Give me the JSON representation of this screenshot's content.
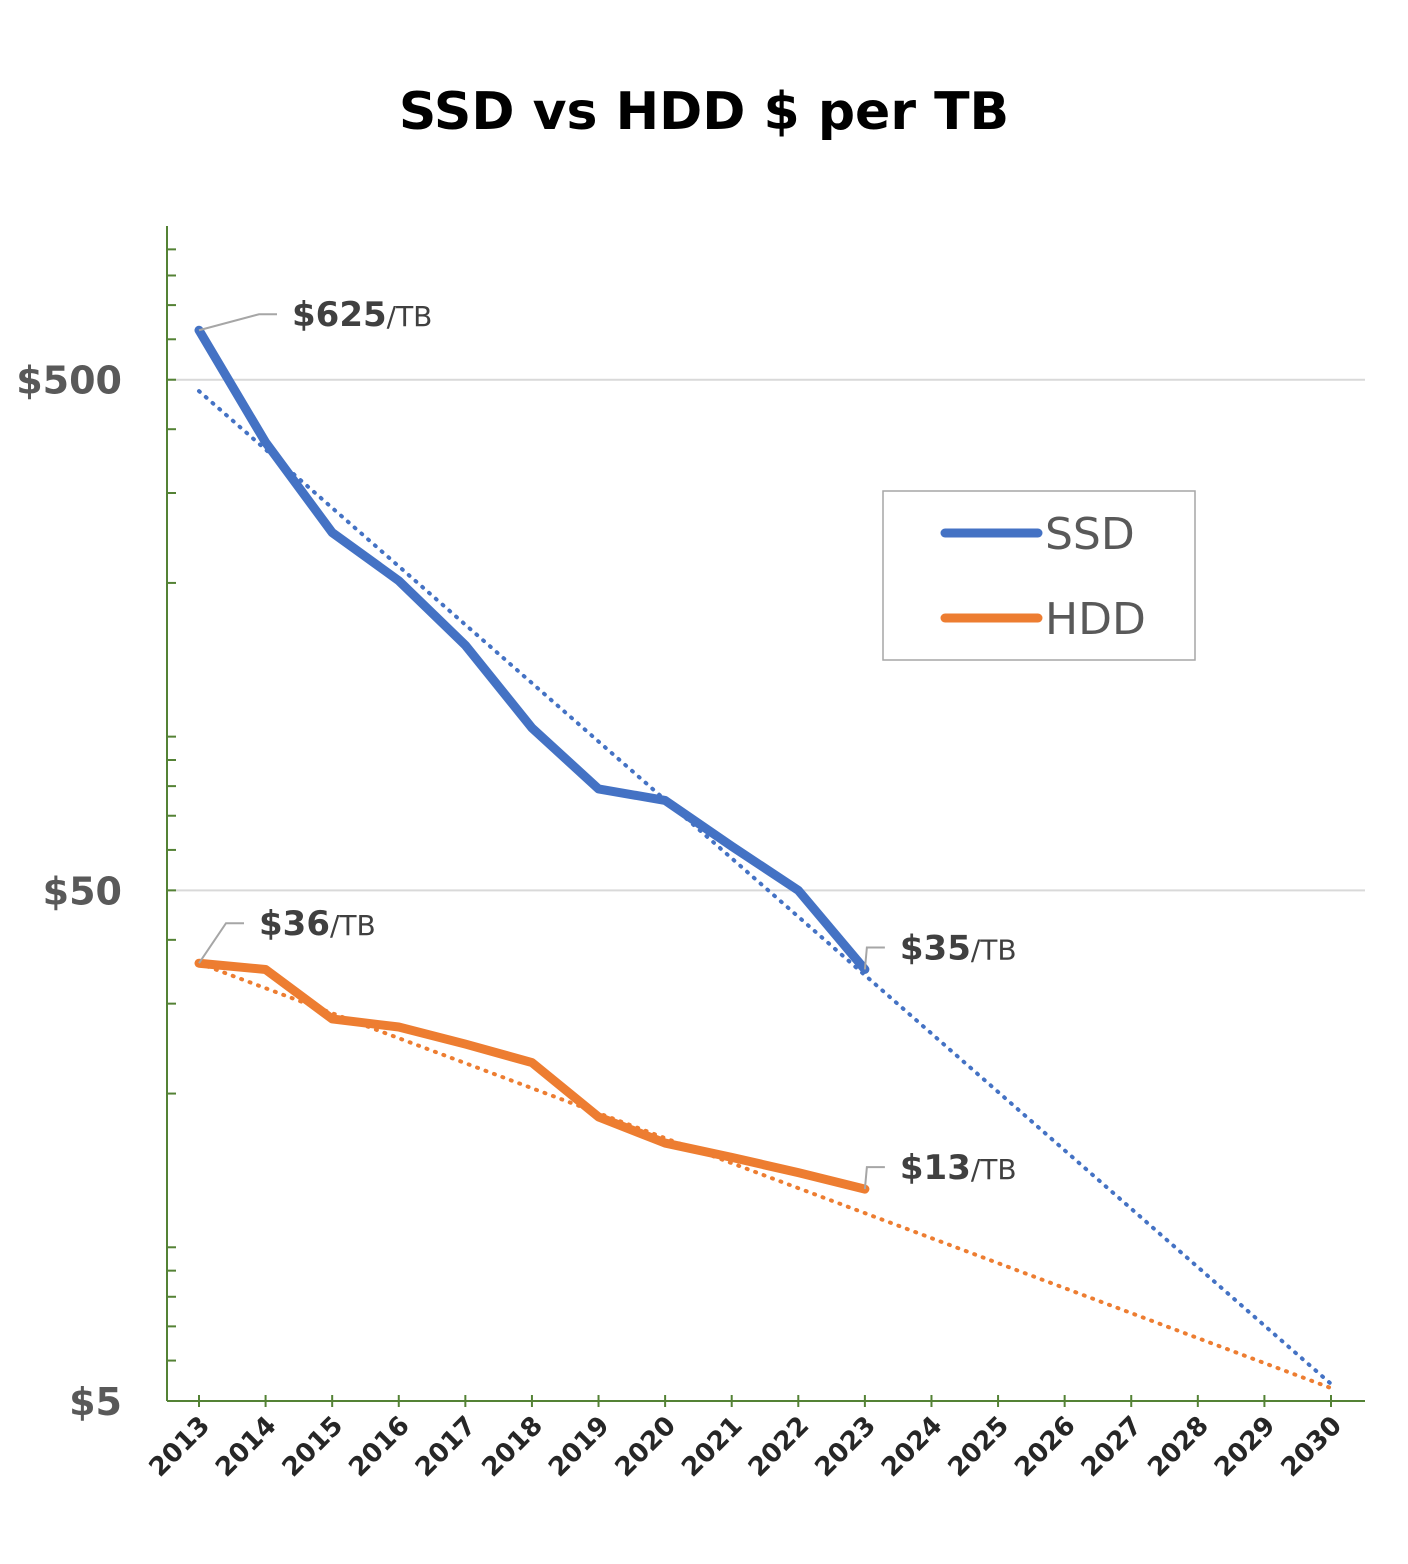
{
  "chart_data": {
    "type": "line",
    "title": "SSD vs HDD $ per TB",
    "xlabel": "",
    "ylabel": "",
    "y_scale": "log",
    "ylim": [
      5,
      1000
    ],
    "y_ticks": [
      5,
      50,
      500
    ],
    "y_tick_labels": [
      "$5",
      "$50",
      "$500"
    ],
    "x": [
      2013,
      2014,
      2015,
      2016,
      2017,
      2018,
      2019,
      2020,
      2021,
      2022,
      2023,
      2024,
      2025,
      2026,
      2027,
      2028,
      2029,
      2030
    ],
    "x_tick_labels": [
      "2013",
      "2014",
      "2015",
      "2016",
      "2017",
      "2018",
      "2019",
      "2020",
      "2021",
      "2022",
      "2023",
      "2024",
      "2025",
      "2026",
      "2027",
      "2028",
      "2029",
      "2030"
    ],
    "grid": "horizontal major",
    "legend": "right",
    "series": [
      {
        "name": "SSD",
        "color": "#4472C4",
        "x": [
          2013,
          2014,
          2015,
          2016,
          2017,
          2018,
          2019,
          2020,
          2021,
          2022,
          2023
        ],
        "values": [
          625,
          377,
          251,
          202,
          151,
          104,
          79,
          75,
          61,
          50,
          35
        ],
        "trendline": {
          "style": "dotted",
          "x": [
            2013,
            2030
          ],
          "values": [
            475,
            5.4
          ]
        }
      },
      {
        "name": "HDD",
        "color": "#ED7D31",
        "x": [
          2013,
          2014,
          2015,
          2016,
          2017,
          2018,
          2019,
          2020,
          2021,
          2022,
          2023
        ],
        "values": [
          36,
          35,
          28,
          27,
          25,
          23,
          18,
          16,
          15,
          14,
          13
        ],
        "trendline": {
          "style": "dotted",
          "x": [
            2013,
            2030
          ],
          "values": [
            36,
            5.3
          ]
        }
      }
    ],
    "annotations": [
      {
        "series": "SSD",
        "x": 2013,
        "value": "$625",
        "unit": "/TB"
      },
      {
        "series": "SSD",
        "x": 2023,
        "value": "$35",
        "unit": "/TB"
      },
      {
        "series": "HDD",
        "x": 2013,
        "value": "$36",
        "unit": "/TB"
      },
      {
        "series": "HDD",
        "x": 2023,
        "value": "$13",
        "unit": "/TB"
      }
    ]
  }
}
